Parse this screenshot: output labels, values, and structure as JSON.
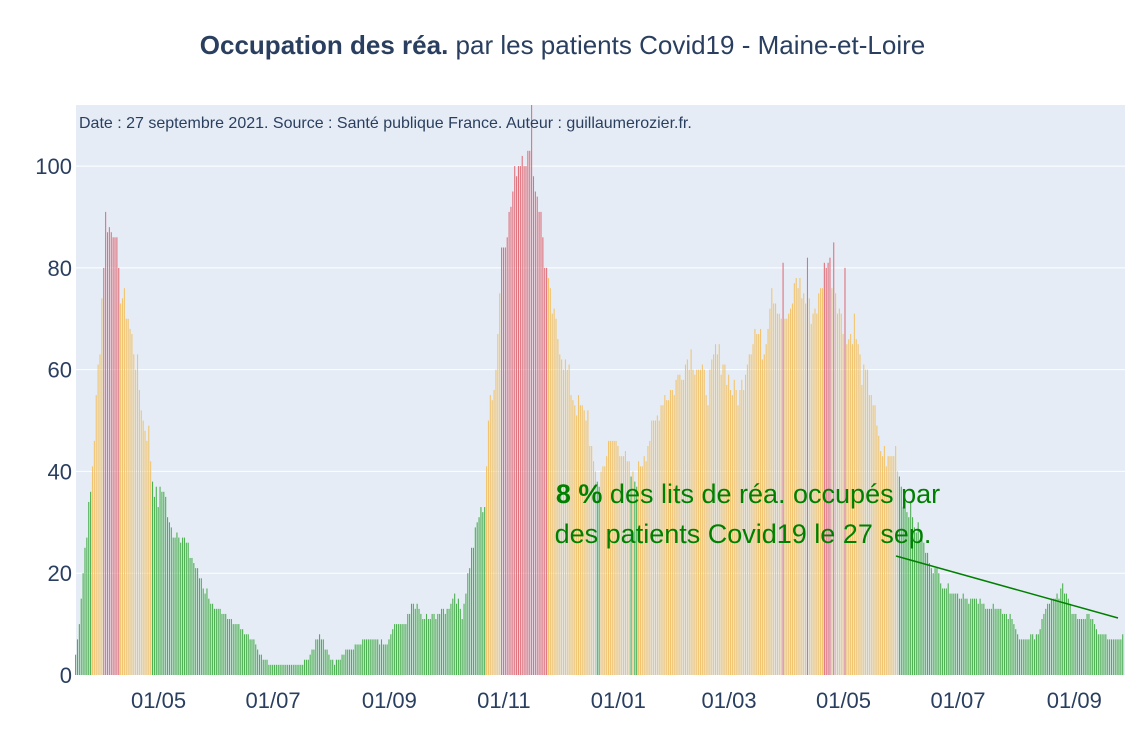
{
  "chart_data": {
    "type": "bar",
    "title": {
      "bold": "Occupation des réa.",
      "rest": " par les patients Covid19 - Maine-et-Loire"
    },
    "subtitle": "Date : 27 septembre 2021. Source : Santé publique France. Auteur : guillaumerozier.fr.",
    "xlabel": "",
    "ylabel": "",
    "ylim": [
      0,
      112
    ],
    "yticks": [
      0,
      20,
      40,
      60,
      80,
      100
    ],
    "x_start": "2020-03-18",
    "x_end": "2021-09-27",
    "x_range": [
      "2020-03-18",
      "2021-09-28"
    ],
    "xticks": [
      {
        "date": "2020-05-01",
        "label": "01/05"
      },
      {
        "date": "2020-07-01",
        "label": "01/07"
      },
      {
        "date": "2020-09-01",
        "label": "01/09"
      },
      {
        "date": "2020-11-01",
        "label": "01/11"
      },
      {
        "date": "2021-01-01",
        "label": "01/01"
      },
      {
        "date": "2021-03-01",
        "label": "01/03"
      },
      {
        "date": "2021-05-01",
        "label": "01/05"
      },
      {
        "date": "2021-07-01",
        "label": "01/07"
      },
      {
        "date": "2021-09-01",
        "label": "01/09"
      }
    ],
    "grid": true,
    "color_thresholds": {
      "orange_at": 40,
      "red_at": 80
    },
    "colors": {
      "green": "#4caf50",
      "orange": "#f2c46d",
      "red": "#e0707a",
      "grid": "#ffffff",
      "plot_bg": "#e5ecf6",
      "annotation": "#008000"
    },
    "values_anchors": [
      [
        "2020-03-18",
        4
      ],
      [
        "2020-03-20",
        10
      ],
      [
        "2020-03-23",
        25
      ],
      [
        "2020-03-26",
        36
      ],
      [
        "2020-03-28",
        47
      ],
      [
        "2020-03-31",
        66
      ],
      [
        "2020-04-03",
        90
      ],
      [
        "2020-04-06",
        87
      ],
      [
        "2020-04-08",
        89
      ],
      [
        "2020-04-10",
        77
      ],
      [
        "2020-04-14",
        72
      ],
      [
        "2020-04-17",
        66
      ],
      [
        "2020-04-20",
        60
      ],
      [
        "2020-04-23",
        50
      ],
      [
        "2020-04-26",
        47
      ],
      [
        "2020-04-28",
        39
      ],
      [
        "2020-05-01",
        34
      ],
      [
        "2020-05-04",
        37
      ],
      [
        "2020-05-07",
        29
      ],
      [
        "2020-05-12",
        28
      ],
      [
        "2020-05-16",
        26
      ],
      [
        "2020-05-20",
        22
      ],
      [
        "2020-05-26",
        17
      ],
      [
        "2020-06-01",
        12
      ],
      [
        "2020-06-06",
        12
      ],
      [
        "2020-06-11",
        10
      ],
      [
        "2020-06-15",
        9
      ],
      [
        "2020-06-20",
        7
      ],
      [
        "2020-06-26",
        3
      ],
      [
        "2020-07-01",
        2
      ],
      [
        "2020-07-10",
        2
      ],
      [
        "2020-07-15",
        2
      ],
      [
        "2020-07-20",
        3
      ],
      [
        "2020-07-26",
        8
      ],
      [
        "2020-07-30",
        5
      ],
      [
        "2020-08-03",
        2
      ],
      [
        "2020-08-10",
        5
      ],
      [
        "2020-08-18",
        7
      ],
      [
        "2020-08-25",
        7
      ],
      [
        "2020-08-31",
        6
      ],
      [
        "2020-09-05",
        10
      ],
      [
        "2020-09-10",
        10
      ],
      [
        "2020-09-14",
        14
      ],
      [
        "2020-09-20",
        11
      ],
      [
        "2020-09-26",
        12
      ],
      [
        "2020-10-02",
        13
      ],
      [
        "2020-10-06",
        16
      ],
      [
        "2020-10-10",
        12
      ],
      [
        "2020-10-14",
        22
      ],
      [
        "2020-10-18",
        30
      ],
      [
        "2020-10-22",
        34
      ],
      [
        "2020-10-25",
        55
      ],
      [
        "2020-10-28",
        60
      ],
      [
        "2020-10-31",
        84
      ],
      [
        "2020-11-04",
        90
      ],
      [
        "2020-11-08",
        100
      ],
      [
        "2020-11-12",
        103
      ],
      [
        "2020-11-16",
        100
      ],
      [
        "2020-11-20",
        93
      ],
      [
        "2020-11-23",
        82
      ],
      [
        "2020-11-26",
        73
      ],
      [
        "2020-11-29",
        68
      ],
      [
        "2020-12-03",
        62
      ],
      [
        "2020-12-08",
        55
      ],
      [
        "2020-12-13",
        51
      ],
      [
        "2020-12-16",
        51
      ],
      [
        "2020-12-19",
        40
      ],
      [
        "2020-12-22",
        38
      ],
      [
        "2020-12-26",
        44
      ],
      [
        "2020-12-30",
        46
      ],
      [
        "2021-01-03",
        45
      ],
      [
        "2021-01-06",
        41
      ],
      [
        "2021-01-09",
        38
      ],
      [
        "2021-01-12",
        40
      ],
      [
        "2021-01-15",
        44
      ],
      [
        "2021-01-20",
        48
      ],
      [
        "2021-01-25",
        55
      ],
      [
        "2021-01-30",
        56
      ],
      [
        "2021-02-05",
        61
      ],
      [
        "2021-02-09",
        63
      ],
      [
        "2021-02-13",
        60
      ],
      [
        "2021-02-18",
        56
      ],
      [
        "2021-02-22",
        63
      ],
      [
        "2021-02-26",
        62
      ],
      [
        "2021-03-03",
        56
      ],
      [
        "2021-03-07",
        55
      ],
      [
        "2021-03-11",
        63
      ],
      [
        "2021-03-15",
        68
      ],
      [
        "2021-03-20",
        64
      ],
      [
        "2021-03-24",
        77
      ],
      [
        "2021-03-28",
        72
      ],
      [
        "2021-04-02",
        69
      ],
      [
        "2021-04-06",
        78
      ],
      [
        "2021-04-10",
        74
      ],
      [
        "2021-04-14",
        71
      ],
      [
        "2021-04-18",
        73
      ],
      [
        "2021-04-22",
        82
      ],
      [
        "2021-04-26",
        78
      ],
      [
        "2021-04-30",
        70
      ],
      [
        "2021-05-03",
        65
      ],
      [
        "2021-05-07",
        69
      ],
      [
        "2021-05-11",
        59
      ],
      [
        "2021-05-16",
        56
      ],
      [
        "2021-05-20",
        45
      ],
      [
        "2021-05-25",
        42
      ],
      [
        "2021-05-29",
        44
      ],
      [
        "2021-06-02",
        35
      ],
      [
        "2021-06-07",
        31
      ],
      [
        "2021-06-12",
        26
      ],
      [
        "2021-06-18",
        21
      ],
      [
        "2021-06-24",
        18
      ],
      [
        "2021-07-01",
        16
      ],
      [
        "2021-07-08",
        15
      ],
      [
        "2021-07-15",
        14
      ],
      [
        "2021-07-22",
        13
      ],
      [
        "2021-07-30",
        11
      ],
      [
        "2021-08-03",
        7
      ],
      [
        "2021-08-08",
        7
      ],
      [
        "2021-08-13",
        8
      ],
      [
        "2021-08-17",
        13
      ],
      [
        "2021-08-22",
        15
      ],
      [
        "2021-08-27",
        17
      ],
      [
        "2021-08-31",
        13
      ],
      [
        "2021-09-04",
        11
      ],
      [
        "2021-09-10",
        12
      ],
      [
        "2021-09-15",
        8
      ],
      [
        "2021-09-21",
        7
      ],
      [
        "2021-09-25",
        7
      ],
      [
        "2021-09-27",
        8
      ]
    ],
    "highlight_spikes": [
      [
        "2020-11-16",
        112
      ],
      [
        "2021-04-26",
        85
      ],
      [
        "2021-04-12",
        82
      ],
      [
        "2021-03-30",
        81
      ],
      [
        "2021-05-02",
        80
      ]
    ],
    "annotation": {
      "line1_bold": "8  %",
      "line1_rest": " des lits de réa. occupés par",
      "line2": "des patients Covid19 le 27 sep."
    }
  }
}
